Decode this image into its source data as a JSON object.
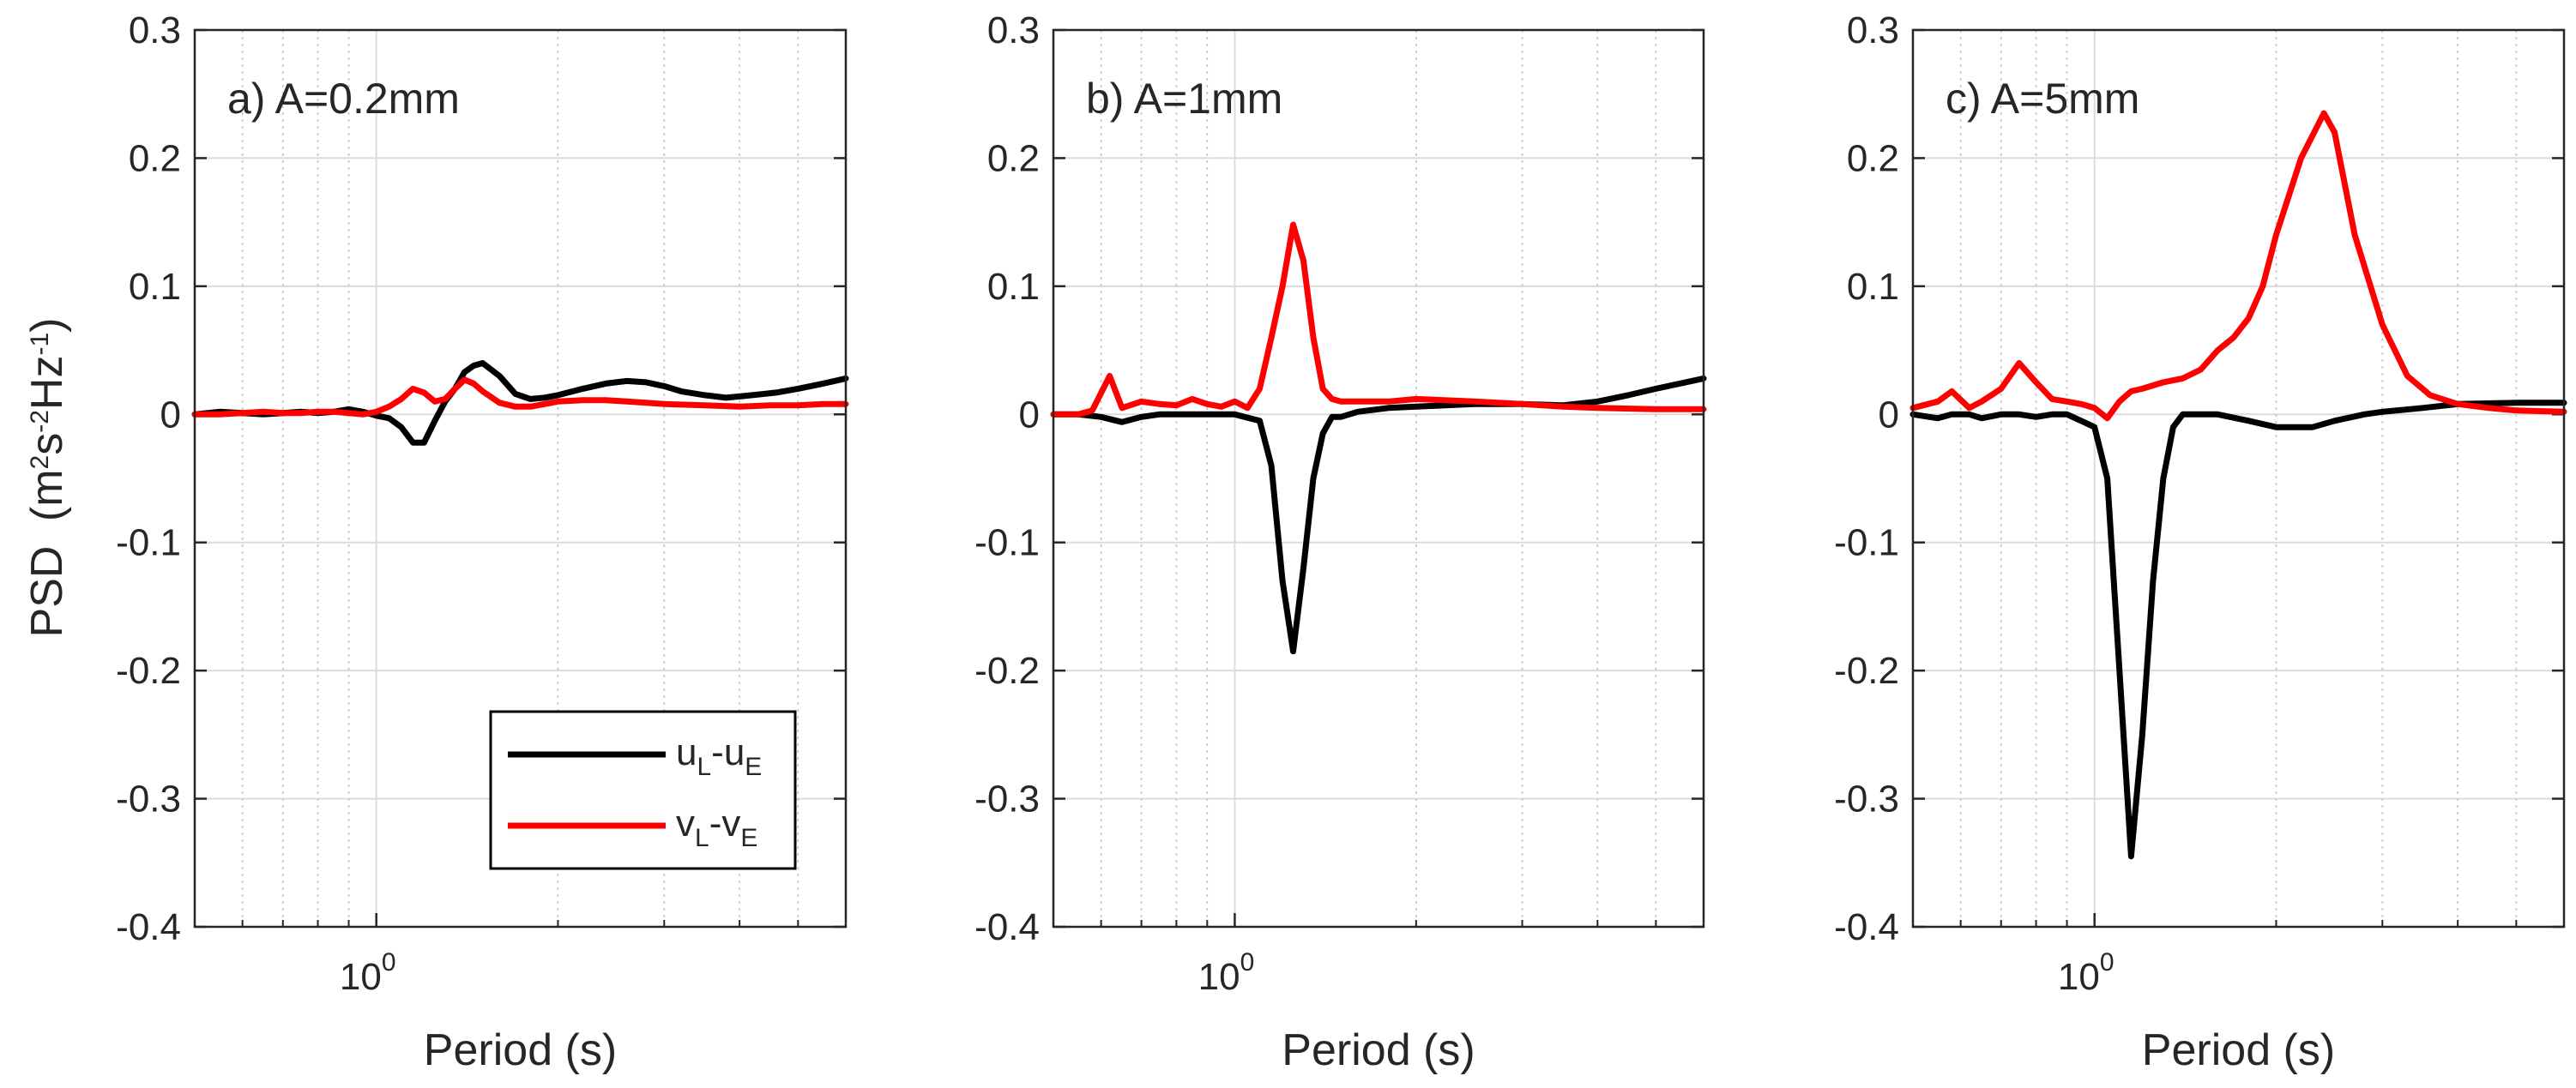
{
  "figure": {
    "ylabel": "PSD",
    "ylabel_units": "(m",
    "ylabel_sup1": "2",
    "ylabel_s": "s",
    "ylabel_sup2": "-2",
    "ylabel_hz": "Hz",
    "ylabel_sup3": "-1",
    "ylabel_close": ")",
    "xlabel": "Period (s)",
    "xtick_base": "10",
    "xtick_exp": "0"
  },
  "legend": {
    "entries": [
      {
        "base": "u",
        "sub1": "L",
        "mid": "-u",
        "sub2": "E",
        "color": "#000000"
      },
      {
        "base": "v",
        "sub1": "L",
        "mid": "-v",
        "sub2": "E",
        "color": "#ff0000"
      }
    ]
  },
  "chart_data": [
    {
      "type": "line",
      "title": "a) A=0.2mm",
      "xscale": "log",
      "xlim": [
        0.5,
        6.0
      ],
      "ylim": [
        -0.4,
        0.3
      ],
      "yticks": [
        "-0.4",
        "-0.3",
        "-0.2",
        "-0.1",
        "0",
        "0.1",
        "0.2",
        "0.3"
      ],
      "xlabel": "Period (s)",
      "grid": true,
      "legend_position": "bottom-right",
      "series": [
        {
          "name": "uL-uE",
          "color": "#000000",
          "x": [
            0.5,
            0.55,
            0.6,
            0.65,
            0.7,
            0.75,
            0.8,
            0.85,
            0.9,
            0.95,
            1.0,
            1.05,
            1.1,
            1.15,
            1.2,
            1.25,
            1.3,
            1.35,
            1.4,
            1.45,
            1.5,
            1.6,
            1.7,
            1.8,
            1.9,
            2.0,
            2.2,
            2.4,
            2.6,
            2.8,
            3.0,
            3.2,
            3.5,
            3.8,
            4.2,
            4.6,
            5.0,
            5.5,
            6.0
          ],
          "y": [
            0.0,
            0.002,
            0.001,
            0.0,
            0.001,
            0.002,
            0.001,
            0.002,
            0.004,
            0.002,
            -0.001,
            -0.003,
            -0.01,
            -0.022,
            -0.022,
            -0.005,
            0.01,
            0.02,
            0.033,
            0.038,
            0.04,
            0.03,
            0.016,
            0.012,
            0.013,
            0.015,
            0.02,
            0.024,
            0.026,
            0.025,
            0.022,
            0.018,
            0.015,
            0.013,
            0.015,
            0.017,
            0.02,
            0.024,
            0.028
          ]
        },
        {
          "name": "vL-vE",
          "color": "#ff0000",
          "x": [
            0.5,
            0.55,
            0.6,
            0.65,
            0.7,
            0.75,
            0.8,
            0.85,
            0.9,
            0.95,
            1.0,
            1.05,
            1.1,
            1.15,
            1.2,
            1.25,
            1.3,
            1.35,
            1.4,
            1.45,
            1.5,
            1.6,
            1.7,
            1.8,
            1.9,
            2.0,
            2.2,
            2.4,
            2.6,
            2.8,
            3.0,
            3.5,
            4.0,
            4.5,
            5.0,
            5.5,
            6.0
          ],
          "y": [
            0.0,
            0.0,
            0.001,
            0.002,
            0.001,
            0.001,
            0.002,
            0.002,
            0.001,
            0.0,
            0.002,
            0.006,
            0.012,
            0.02,
            0.017,
            0.01,
            0.012,
            0.02,
            0.027,
            0.024,
            0.018,
            0.009,
            0.006,
            0.006,
            0.008,
            0.01,
            0.011,
            0.011,
            0.01,
            0.009,
            0.008,
            0.007,
            0.006,
            0.007,
            0.007,
            0.008,
            0.008
          ]
        }
      ]
    },
    {
      "type": "line",
      "title": "b) A=1mm",
      "xscale": "log",
      "xlim": [
        0.5,
        6.0
      ],
      "ylim": [
        -0.4,
        0.3
      ],
      "yticks": [
        "-0.4",
        "-0.3",
        "-0.2",
        "-0.1",
        "0",
        "0.1",
        "0.2",
        "0.3"
      ],
      "xlabel": "Period (s)",
      "grid": true,
      "series": [
        {
          "name": "uL-uE",
          "color": "#000000",
          "x": [
            0.5,
            0.55,
            0.6,
            0.65,
            0.7,
            0.75,
            0.8,
            0.9,
            1.0,
            1.1,
            1.15,
            1.2,
            1.25,
            1.3,
            1.35,
            1.4,
            1.45,
            1.5,
            1.6,
            1.8,
            2.0,
            2.5,
            3.0,
            3.5,
            4.0,
            4.5,
            5.0,
            6.0
          ],
          "y": [
            0.0,
            0.0,
            -0.002,
            -0.006,
            -0.002,
            0.0,
            0.0,
            0.0,
            0.0,
            -0.005,
            -0.04,
            -0.13,
            -0.185,
            -0.12,
            -0.05,
            -0.015,
            -0.002,
            -0.002,
            0.002,
            0.005,
            0.006,
            0.008,
            0.008,
            0.007,
            0.01,
            0.015,
            0.02,
            0.028
          ]
        },
        {
          "name": "vL-vE",
          "color": "#ff0000",
          "x": [
            0.5,
            0.55,
            0.58,
            0.62,
            0.65,
            0.7,
            0.75,
            0.8,
            0.85,
            0.9,
            0.95,
            1.0,
            1.05,
            1.1,
            1.15,
            1.2,
            1.25,
            1.3,
            1.35,
            1.4,
            1.45,
            1.5,
            1.6,
            1.8,
            2.0,
            2.5,
            3.0,
            3.5,
            4.0,
            5.0,
            6.0
          ],
          "y": [
            0.0,
            0.0,
            0.003,
            0.03,
            0.005,
            0.01,
            0.008,
            0.007,
            0.012,
            0.008,
            0.006,
            0.01,
            0.005,
            0.02,
            0.06,
            0.1,
            0.148,
            0.12,
            0.06,
            0.02,
            0.012,
            0.01,
            0.01,
            0.01,
            0.012,
            0.01,
            0.008,
            0.006,
            0.005,
            0.004,
            0.004
          ]
        }
      ]
    },
    {
      "type": "line",
      "title": "c) A=5mm",
      "xscale": "log",
      "xlim": [
        0.5,
        6.0
      ],
      "ylim": [
        -0.4,
        0.3
      ],
      "yticks": [
        "-0.4",
        "-0.3",
        "-0.2",
        "-0.1",
        "0",
        "0.1",
        "0.2",
        "0.3"
      ],
      "xlabel": "Period (s)",
      "grid": true,
      "series": [
        {
          "name": "uL-uE",
          "color": "#000000",
          "x": [
            0.5,
            0.55,
            0.58,
            0.62,
            0.65,
            0.7,
            0.75,
            0.8,
            0.85,
            0.9,
            0.95,
            1.0,
            1.05,
            1.1,
            1.15,
            1.2,
            1.25,
            1.3,
            1.35,
            1.4,
            1.45,
            1.5,
            1.6,
            1.8,
            2.0,
            2.3,
            2.5,
            2.8,
            3.0,
            3.5,
            4.0,
            5.0,
            6.0
          ],
          "y": [
            0.0,
            -0.003,
            0.0,
            0.0,
            -0.003,
            0.0,
            0.0,
            -0.002,
            0.0,
            0.0,
            -0.005,
            -0.01,
            -0.05,
            -0.2,
            -0.345,
            -0.25,
            -0.13,
            -0.05,
            -0.01,
            0.0,
            0.0,
            0.0,
            0.0,
            -0.005,
            -0.01,
            -0.01,
            -0.005,
            0.0,
            0.002,
            0.005,
            0.008,
            0.009,
            0.009
          ]
        },
        {
          "name": "vL-vE",
          "color": "#ff0000",
          "x": [
            0.5,
            0.55,
            0.58,
            0.62,
            0.65,
            0.7,
            0.75,
            0.8,
            0.85,
            0.9,
            0.95,
            1.0,
            1.05,
            1.1,
            1.15,
            1.2,
            1.3,
            1.4,
            1.5,
            1.6,
            1.7,
            1.8,
            1.9,
            2.0,
            2.2,
            2.4,
            2.5,
            2.7,
            3.0,
            3.3,
            3.6,
            4.0,
            4.5,
            5.0,
            6.0
          ],
          "y": [
            0.005,
            0.01,
            0.018,
            0.005,
            0.01,
            0.02,
            0.04,
            0.025,
            0.012,
            0.01,
            0.008,
            0.005,
            -0.003,
            0.01,
            0.018,
            0.02,
            0.025,
            0.028,
            0.035,
            0.05,
            0.06,
            0.075,
            0.1,
            0.14,
            0.2,
            0.235,
            0.22,
            0.14,
            0.07,
            0.03,
            0.015,
            0.008,
            0.005,
            0.003,
            0.002
          ]
        }
      ]
    }
  ]
}
